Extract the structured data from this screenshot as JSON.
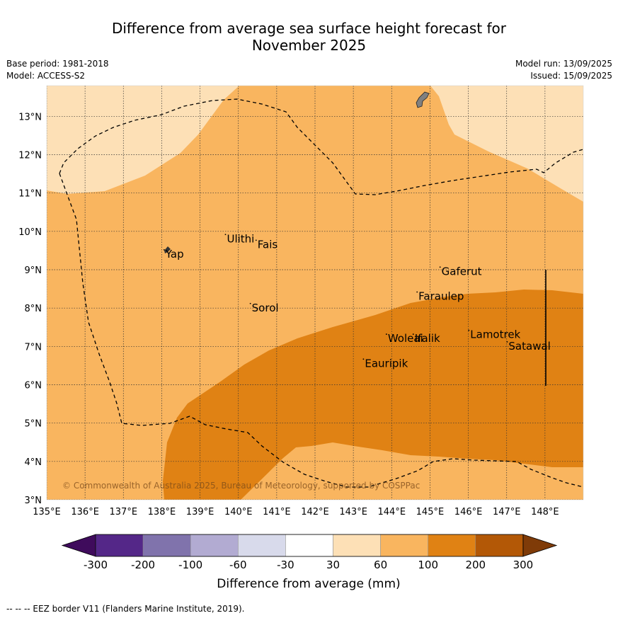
{
  "title": {
    "line1": "Difference from average sea surface height forecast for",
    "line2": "November 2025"
  },
  "meta": {
    "base_period": "Base period: 1981-2018",
    "model": "Model: ACCESS-S2",
    "model_run": "Model run: 13/09/2025",
    "issued": "Issued: 15/09/2025"
  },
  "map": {
    "lon_range": [
      135,
      149
    ],
    "lat_range": [
      3,
      13.8
    ],
    "lon_ticks": [
      "135°E",
      "136°E",
      "137°E",
      "138°E",
      "139°E",
      "140°E",
      "141°E",
      "142°E",
      "143°E",
      "144°E",
      "145°E",
      "146°E",
      "147°E",
      "148°E"
    ],
    "lat_ticks": [
      "3°N",
      "4°N",
      "5°N",
      "6°N",
      "7°N",
      "8°N",
      "9°N",
      "10°N",
      "11°N",
      "12°N",
      "13°N"
    ],
    "colors": {
      "band_30_60": "#fde0b6",
      "band_60_100": "#f9b55f",
      "band_100_200": "#e08214",
      "land": "#808080",
      "grid": "#333333",
      "eez": "#000000"
    },
    "places": [
      {
        "name": "Yap",
        "lon": 138.1,
        "lat": 9.5
      },
      {
        "name": "Ulithi",
        "lon": 139.7,
        "lat": 9.9
      },
      {
        "name": "Fais",
        "lon": 140.5,
        "lat": 9.75
      },
      {
        "name": "Sorol",
        "lon": 140.35,
        "lat": 8.1
      },
      {
        "name": "Gaferut",
        "lon": 145.3,
        "lat": 9.05
      },
      {
        "name": "Faraulep",
        "lon": 144.7,
        "lat": 8.4
      },
      {
        "name": "Woleai",
        "lon": 143.9,
        "lat": 7.3
      },
      {
        "name": "Ifalik",
        "lon": 144.6,
        "lat": 7.3
      },
      {
        "name": "Lamotrek",
        "lon": 146.05,
        "lat": 7.4
      },
      {
        "name": "Satawal",
        "lon": 147.05,
        "lat": 7.1
      },
      {
        "name": "Eauripik",
        "lon": 143.3,
        "lat": 6.65
      }
    ],
    "copyright": "© Commonwealth of Australia 2025, Bureau of Meteorology, supported by COSPPac"
  },
  "colorbar": {
    "tick_labels": [
      "-300",
      "-200",
      "-100",
      "-60",
      "-30",
      "30",
      "60",
      "100",
      "200",
      "300"
    ],
    "colors": [
      "#3f0b5c",
      "#542788",
      "#8073ac",
      "#b2abd2",
      "#d8daeb",
      "#ffffff",
      "#fde0b6",
      "#f9b55f",
      "#e08214",
      "#b35806",
      "#7f3b08"
    ],
    "label": "Difference from average (mm)"
  },
  "footer": "--  --  -- EEZ border V11 (Flanders Marine Institute, 2019)."
}
